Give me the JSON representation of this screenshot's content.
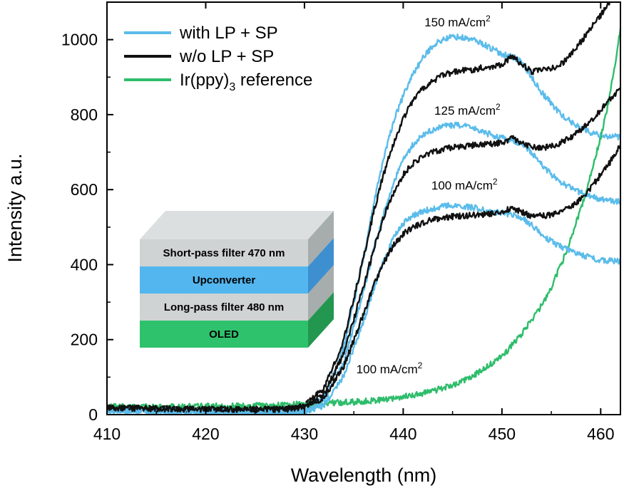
{
  "chart_data": {
    "type": "line",
    "xlabel": "Wavelength (nm)",
    "ylabel": "Intensity a.u.",
    "xlim": [
      410,
      462
    ],
    "ylim": [
      0,
      1100
    ],
    "xticks": [
      410,
      420,
      430,
      440,
      450,
      460
    ],
    "yticks": [
      0,
      200,
      400,
      600,
      800,
      1000
    ],
    "grid": false,
    "legend_position": "top-left",
    "series": [
      {
        "name": "with LP + SP",
        "color": "#5bbcea",
        "group": "150",
        "points": [
          [
            410,
            12
          ],
          [
            420,
            8
          ],
          [
            428,
            5
          ],
          [
            430,
            10
          ],
          [
            432,
            45
          ],
          [
            434,
            180
          ],
          [
            436,
            420
          ],
          [
            437,
            560
          ],
          [
            438,
            680
          ],
          [
            439,
            780
          ],
          [
            440,
            850
          ],
          [
            441,
            910
          ],
          [
            442,
            950
          ],
          [
            443,
            985
          ],
          [
            444,
            1000
          ],
          [
            445,
            1008
          ],
          [
            446,
            1005
          ],
          [
            447,
            1000
          ],
          [
            448,
            990
          ],
          [
            449,
            975
          ],
          [
            450,
            962
          ],
          [
            451,
            955
          ],
          [
            452,
            940
          ],
          [
            453,
            900
          ],
          [
            454,
            860
          ],
          [
            455,
            830
          ],
          [
            456,
            800
          ],
          [
            457,
            780
          ],
          [
            458,
            765
          ],
          [
            459,
            752
          ],
          [
            460,
            745
          ],
          [
            461,
            742
          ],
          [
            462,
            740
          ]
        ]
      },
      {
        "name": "w/o LP + SP",
        "color": "#111111",
        "group": "150",
        "points": [
          [
            410,
            18
          ],
          [
            420,
            14
          ],
          [
            428,
            14
          ],
          [
            430,
            25
          ],
          [
            432,
            70
          ],
          [
            434,
            200
          ],
          [
            436,
            420
          ],
          [
            437,
            540
          ],
          [
            438,
            640
          ],
          [
            439,
            720
          ],
          [
            440,
            790
          ],
          [
            441,
            840
          ],
          [
            442,
            870
          ],
          [
            443,
            890
          ],
          [
            444,
            905
          ],
          [
            445,
            912
          ],
          [
            446,
            918
          ],
          [
            447,
            920
          ],
          [
            448,
            925
          ],
          [
            449,
            928
          ],
          [
            450,
            935
          ],
          [
            451,
            955
          ],
          [
            452,
            935
          ],
          [
            453,
            915
          ],
          [
            454,
            918
          ],
          [
            455,
            922
          ],
          [
            456,
            935
          ],
          [
            457,
            960
          ],
          [
            458,
            995
          ],
          [
            459,
            1030
          ],
          [
            460,
            1065
          ],
          [
            461,
            1100
          ]
        ]
      },
      {
        "name": "Ir(ppy)3 reference",
        "color": "#2ebd6b",
        "group": "ref",
        "points": [
          [
            410,
            22
          ],
          [
            415,
            20
          ],
          [
            420,
            22
          ],
          [
            425,
            24
          ],
          [
            430,
            28
          ],
          [
            435,
            34
          ],
          [
            438,
            40
          ],
          [
            440,
            48
          ],
          [
            442,
            57
          ],
          [
            444,
            70
          ],
          [
            446,
            88
          ],
          [
            448,
            118
          ],
          [
            450,
            155
          ],
          [
            452,
            215
          ],
          [
            454,
            290
          ],
          [
            455,
            340
          ],
          [
            456,
            400
          ],
          [
            457,
            470
          ],
          [
            458,
            550
          ],
          [
            459,
            640
          ],
          [
            460,
            740
          ],
          [
            461,
            860
          ],
          [
            462,
            1030
          ]
        ]
      },
      {
        "color": "#5bbcea",
        "group": "125",
        "points": [
          [
            410,
            12
          ],
          [
            420,
            8
          ],
          [
            428,
            5
          ],
          [
            430,
            8
          ],
          [
            432,
            35
          ],
          [
            434,
            140
          ],
          [
            436,
            330
          ],
          [
            437,
            440
          ],
          [
            438,
            535
          ],
          [
            439,
            615
          ],
          [
            440,
            680
          ],
          [
            441,
            720
          ],
          [
            442,
            745
          ],
          [
            443,
            760
          ],
          [
            444,
            768
          ],
          [
            445,
            772
          ],
          [
            446,
            770
          ],
          [
            447,
            765
          ],
          [
            448,
            755
          ],
          [
            449,
            745
          ],
          [
            450,
            738
          ],
          [
            451,
            732
          ],
          [
            452,
            722
          ],
          [
            453,
            700
          ],
          [
            454,
            668
          ],
          [
            455,
            640
          ],
          [
            456,
            620
          ],
          [
            457,
            605
          ],
          [
            458,
            592
          ],
          [
            459,
            582
          ],
          [
            460,
            575
          ],
          [
            461,
            570
          ],
          [
            462,
            568
          ]
        ]
      },
      {
        "color": "#111111",
        "group": "125",
        "points": [
          [
            410,
            18
          ],
          [
            420,
            14
          ],
          [
            428,
            14
          ],
          [
            430,
            22
          ],
          [
            432,
            55
          ],
          [
            434,
            165
          ],
          [
            436,
            345
          ],
          [
            437,
            440
          ],
          [
            438,
            525
          ],
          [
            439,
            590
          ],
          [
            440,
            640
          ],
          [
            441,
            670
          ],
          [
            442,
            690
          ],
          [
            443,
            700
          ],
          [
            444,
            708
          ],
          [
            445,
            712
          ],
          [
            446,
            715
          ],
          [
            447,
            718
          ],
          [
            448,
            720
          ],
          [
            449,
            722
          ],
          [
            450,
            726
          ],
          [
            451,
            738
          ],
          [
            452,
            725
          ],
          [
            453,
            712
          ],
          [
            454,
            712
          ],
          [
            455,
            715
          ],
          [
            456,
            725
          ],
          [
            457,
            740
          ],
          [
            458,
            760
          ],
          [
            459,
            785
          ],
          [
            460,
            812
          ],
          [
            461,
            842
          ],
          [
            462,
            870
          ]
        ]
      },
      {
        "color": "#5bbcea",
        "group": "100",
        "points": [
          [
            410,
            12
          ],
          [
            420,
            8
          ],
          [
            428,
            5
          ],
          [
            430,
            7
          ],
          [
            432,
            25
          ],
          [
            434,
            105
          ],
          [
            436,
            250
          ],
          [
            437,
            335
          ],
          [
            438,
            410
          ],
          [
            439,
            470
          ],
          [
            440,
            510
          ],
          [
            441,
            530
          ],
          [
            442,
            543
          ],
          [
            443,
            550
          ],
          [
            444,
            555
          ],
          [
            445,
            558
          ],
          [
            446,
            556
          ],
          [
            447,
            552
          ],
          [
            448,
            547
          ],
          [
            449,
            542
          ],
          [
            450,
            538
          ],
          [
            451,
            534
          ],
          [
            452,
            525
          ],
          [
            453,
            505
          ],
          [
            454,
            482
          ],
          [
            455,
            462
          ],
          [
            456,
            448
          ],
          [
            457,
            436
          ],
          [
            458,
            426
          ],
          [
            459,
            418
          ],
          [
            460,
            413
          ],
          [
            461,
            410
          ],
          [
            462,
            408
          ]
        ]
      },
      {
        "color": "#111111",
        "group": "100",
        "points": [
          [
            410,
            18
          ],
          [
            420,
            14
          ],
          [
            428,
            14
          ],
          [
            430,
            20
          ],
          [
            432,
            45
          ],
          [
            434,
            130
          ],
          [
            436,
            270
          ],
          [
            437,
            345
          ],
          [
            438,
            405
          ],
          [
            439,
            450
          ],
          [
            440,
            482
          ],
          [
            441,
            500
          ],
          [
            442,
            512
          ],
          [
            443,
            520
          ],
          [
            444,
            525
          ],
          [
            445,
            528
          ],
          [
            446,
            530
          ],
          [
            447,
            532
          ],
          [
            448,
            533
          ],
          [
            449,
            535
          ],
          [
            450,
            538
          ],
          [
            451,
            552
          ],
          [
            452,
            540
          ],
          [
            453,
            530
          ],
          [
            454,
            530
          ],
          [
            455,
            533
          ],
          [
            456,
            542
          ],
          [
            457,
            555
          ],
          [
            458,
            575
          ],
          [
            459,
            605
          ],
          [
            460,
            640
          ],
          [
            461,
            675
          ],
          [
            462,
            720
          ]
        ]
      }
    ],
    "annotations": [
      {
        "base": "150 mA/cm",
        "sup": "2",
        "x": 445.5,
        "y": 1035
      },
      {
        "base": "125 mA/cm",
        "sup": "2",
        "x": 446.5,
        "y": 800
      },
      {
        "base": "100 mA/cm",
        "sup": "2",
        "x": 446.2,
        "y": 600
      },
      {
        "base": "100 mA/cm",
        "sup": "2",
        "x": 438.6,
        "y": 110
      }
    ],
    "legend": [
      {
        "label_main": "with LP + SP",
        "label_sub": "",
        "label_tail": "",
        "color": "#5bbcea"
      },
      {
        "label_main": "w/o LP + SP",
        "label_sub": "",
        "label_tail": "",
        "color": "#111111"
      },
      {
        "label_main": "Ir(ppy)",
        "label_sub": "3",
        "label_tail": " reference",
        "color": "#2ebd6b"
      }
    ]
  },
  "device_stack": {
    "layers": [
      {
        "label": "Short-pass filter 470 nm",
        "front": "#cfd3d3",
        "side": "#a7adad",
        "top": "#dcdfdf"
      },
      {
        "label": "Upconverter",
        "front": "#54b6ee",
        "side": "#3d8fd0",
        "top": "#8fd0f5"
      },
      {
        "label": "Long-pass filter 480 nm",
        "front": "#cfd3d3",
        "side": "#a7adad",
        "top": "#dcdfdf"
      },
      {
        "label": "OLED",
        "front": "#2fc26c",
        "side": "#23964f",
        "top": "#5fd48f"
      }
    ]
  }
}
